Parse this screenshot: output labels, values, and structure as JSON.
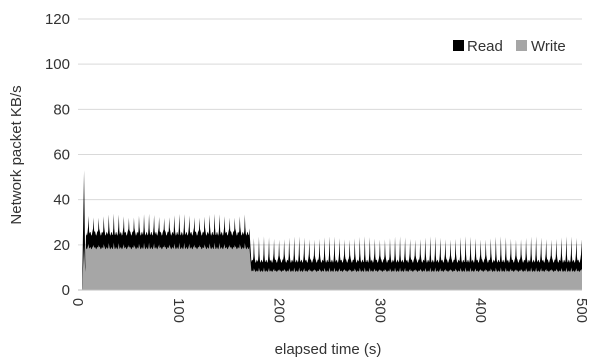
{
  "chart_data": {
    "type": "area",
    "stacked": true,
    "title": "",
    "xlabel": "elapsed time (s)",
    "ylabel": "Network packet KB/s",
    "xlim": [
      0,
      500
    ],
    "ylim": [
      0,
      120
    ],
    "x_ticks": [
      0,
      100,
      200,
      300,
      400,
      500
    ],
    "y_ticks": [
      0,
      20,
      40,
      60,
      80,
      100,
      120
    ],
    "grid": "horizontal",
    "legend_position": "top-right",
    "series": [
      {
        "name": "Read",
        "color": "#000000",
        "segments": [
          {
            "x_start": 8,
            "x_end": 170,
            "baseline": 6,
            "peak": 12,
            "period_s": 5
          },
          {
            "x_start": 172,
            "x_end": 500,
            "baseline": 4,
            "peak": 13,
            "period_s": 5
          }
        ]
      },
      {
        "name": "Write",
        "color": "#a6a6a6",
        "segments": [
          {
            "x_start": 8,
            "x_end": 170,
            "baseline": 18,
            "peak": 21,
            "period_s": 5
          },
          {
            "x_start": 172,
            "x_end": 500,
            "baseline": 8,
            "peak": 10,
            "period_s": 5
          }
        ]
      }
    ],
    "initial_spike": {
      "x": 6,
      "value": 53
    }
  }
}
